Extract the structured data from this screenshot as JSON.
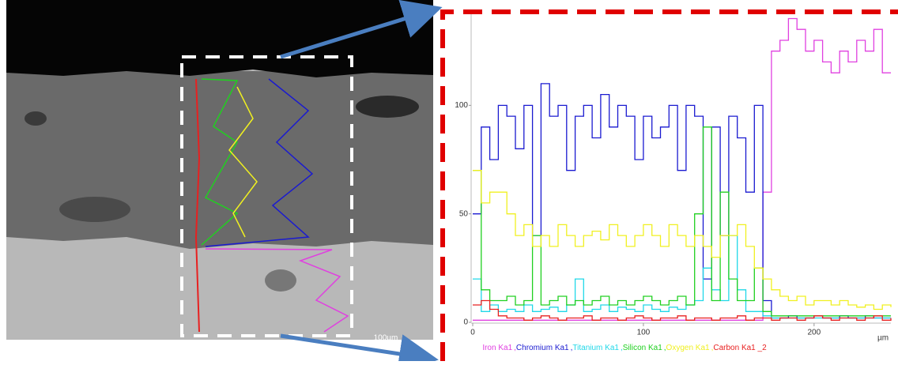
{
  "image_labels": {
    "scale_bar": "100µm"
  },
  "chart_data": {
    "type": "line",
    "x_unit": "µm",
    "xlim": [
      0,
      245
    ],
    "xticks": [
      0,
      100,
      200
    ],
    "ylim": [
      0,
      142
    ],
    "yticks": [
      0,
      50,
      100
    ],
    "x": [
      0,
      5,
      10,
      15,
      20,
      25,
      30,
      35,
      40,
      45,
      50,
      55,
      60,
      65,
      70,
      75,
      80,
      85,
      90,
      95,
      100,
      105,
      110,
      115,
      120,
      125,
      130,
      135,
      140,
      145,
      150,
      155,
      160,
      165,
      170,
      175,
      180,
      185,
      190,
      195,
      200,
      205,
      210,
      215,
      220,
      225,
      230,
      235,
      240,
      245
    ],
    "legend_separator": ",",
    "series": [
      {
        "name": "Iron Ka1",
        "color": "#e040e0",
        "values": [
          1,
          1,
          1,
          1,
          1,
          1,
          1,
          1,
          1,
          1,
          1,
          1,
          1,
          1,
          1,
          1,
          1,
          1,
          1,
          1,
          1,
          1,
          1,
          1,
          1,
          1,
          1,
          1,
          1,
          1,
          1,
          1,
          1,
          1,
          60,
          125,
          130,
          140,
          135,
          125,
          130,
          120,
          115,
          125,
          120,
          130,
          125,
          135,
          115,
          115
        ]
      },
      {
        "name": "Chromium Ka1",
        "color": "#1a1ad0",
        "values": [
          50,
          90,
          75,
          100,
          95,
          80,
          100,
          40,
          110,
          95,
          100,
          70,
          95,
          100,
          85,
          105,
          90,
          100,
          95,
          75,
          95,
          85,
          90,
          100,
          70,
          100,
          95,
          20,
          90,
          40,
          95,
          85,
          60,
          100,
          10,
          2,
          2,
          3,
          2,
          2,
          3,
          2,
          2,
          3,
          2,
          2,
          3,
          2,
          2,
          2
        ]
      },
      {
        "name": "Titanium Ka1",
        "color": "#20d8e8",
        "values": [
          20,
          5,
          8,
          5,
          6,
          5,
          8,
          5,
          6,
          7,
          5,
          8,
          20,
          5,
          6,
          8,
          5,
          7,
          6,
          5,
          8,
          6,
          5,
          7,
          6,
          8,
          10,
          25,
          15,
          10,
          40,
          15,
          5,
          5,
          3,
          2,
          2,
          2,
          2,
          2,
          2,
          2,
          2,
          2,
          2,
          2,
          2,
          2,
          2,
          2
        ]
      },
      {
        "name": "Silicon Ka1",
        "color": "#20d020",
        "values": [
          70,
          15,
          10,
          10,
          12,
          8,
          10,
          40,
          8,
          10,
          12,
          8,
          10,
          8,
          10,
          12,
          8,
          10,
          8,
          10,
          12,
          10,
          8,
          10,
          12,
          8,
          50,
          90,
          10,
          60,
          20,
          10,
          10,
          25,
          5,
          3,
          3,
          3,
          3,
          3,
          3,
          3,
          3,
          3,
          3,
          3,
          3,
          3,
          3,
          3
        ]
      },
      {
        "name": "Oxygen Ka1",
        "color": "#f0f020",
        "values": [
          70,
          55,
          60,
          60,
          50,
          40,
          45,
          35,
          40,
          35,
          45,
          40,
          35,
          40,
          42,
          38,
          45,
          40,
          35,
          40,
          45,
          40,
          35,
          45,
          40,
          35,
          40,
          35,
          30,
          40,
          40,
          45,
          35,
          25,
          20,
          15,
          12,
          10,
          12,
          8,
          10,
          10,
          8,
          10,
          8,
          7,
          8,
          6,
          8,
          7
        ]
      },
      {
        "name": "Carbon Ka1 _2",
        "color": "#e82020",
        "values": [
          8,
          10,
          6,
          3,
          2,
          2,
          1,
          2,
          3,
          2,
          1,
          2,
          2,
          3,
          1,
          2,
          2,
          1,
          2,
          3,
          2,
          1,
          2,
          2,
          3,
          1,
          2,
          2,
          1,
          2,
          2,
          3,
          1,
          2,
          2,
          1,
          2,
          2,
          1,
          2,
          3,
          2,
          1,
          2,
          2,
          1,
          2,
          3,
          1,
          2
        ]
      }
    ]
  }
}
